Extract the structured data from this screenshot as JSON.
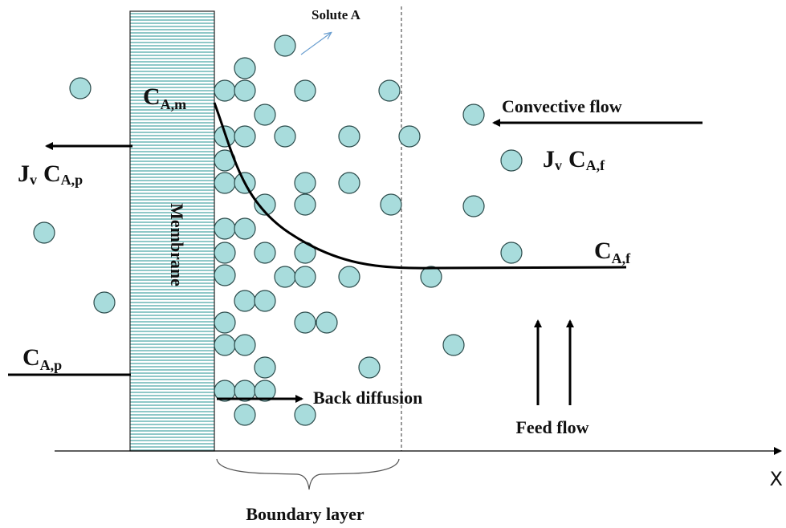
{
  "solute_label": "Solute A",
  "membrane": "Membrane",
  "convective_flow": "Convective flow",
  "back_diffusion": "Back diffusion",
  "feed_flow": "Feed flow",
  "boundary_layer": "Boundary layer",
  "axis_label": "X",
  "c_am": {
    "main": "C",
    "sub": "A,m"
  },
  "c_af": {
    "main": "C",
    "sub": "A,f"
  },
  "c_ap": {
    "main": "C",
    "sub": "A,p"
  },
  "flux_feed": [
    {
      "main": "J",
      "sub": "v"
    },
    {
      "main": "C",
      "sub": "A,f"
    }
  ],
  "flux_perm": [
    {
      "main": "J",
      "sub": "v"
    },
    {
      "main": "C",
      "sub": "A,p"
    }
  ]
}
